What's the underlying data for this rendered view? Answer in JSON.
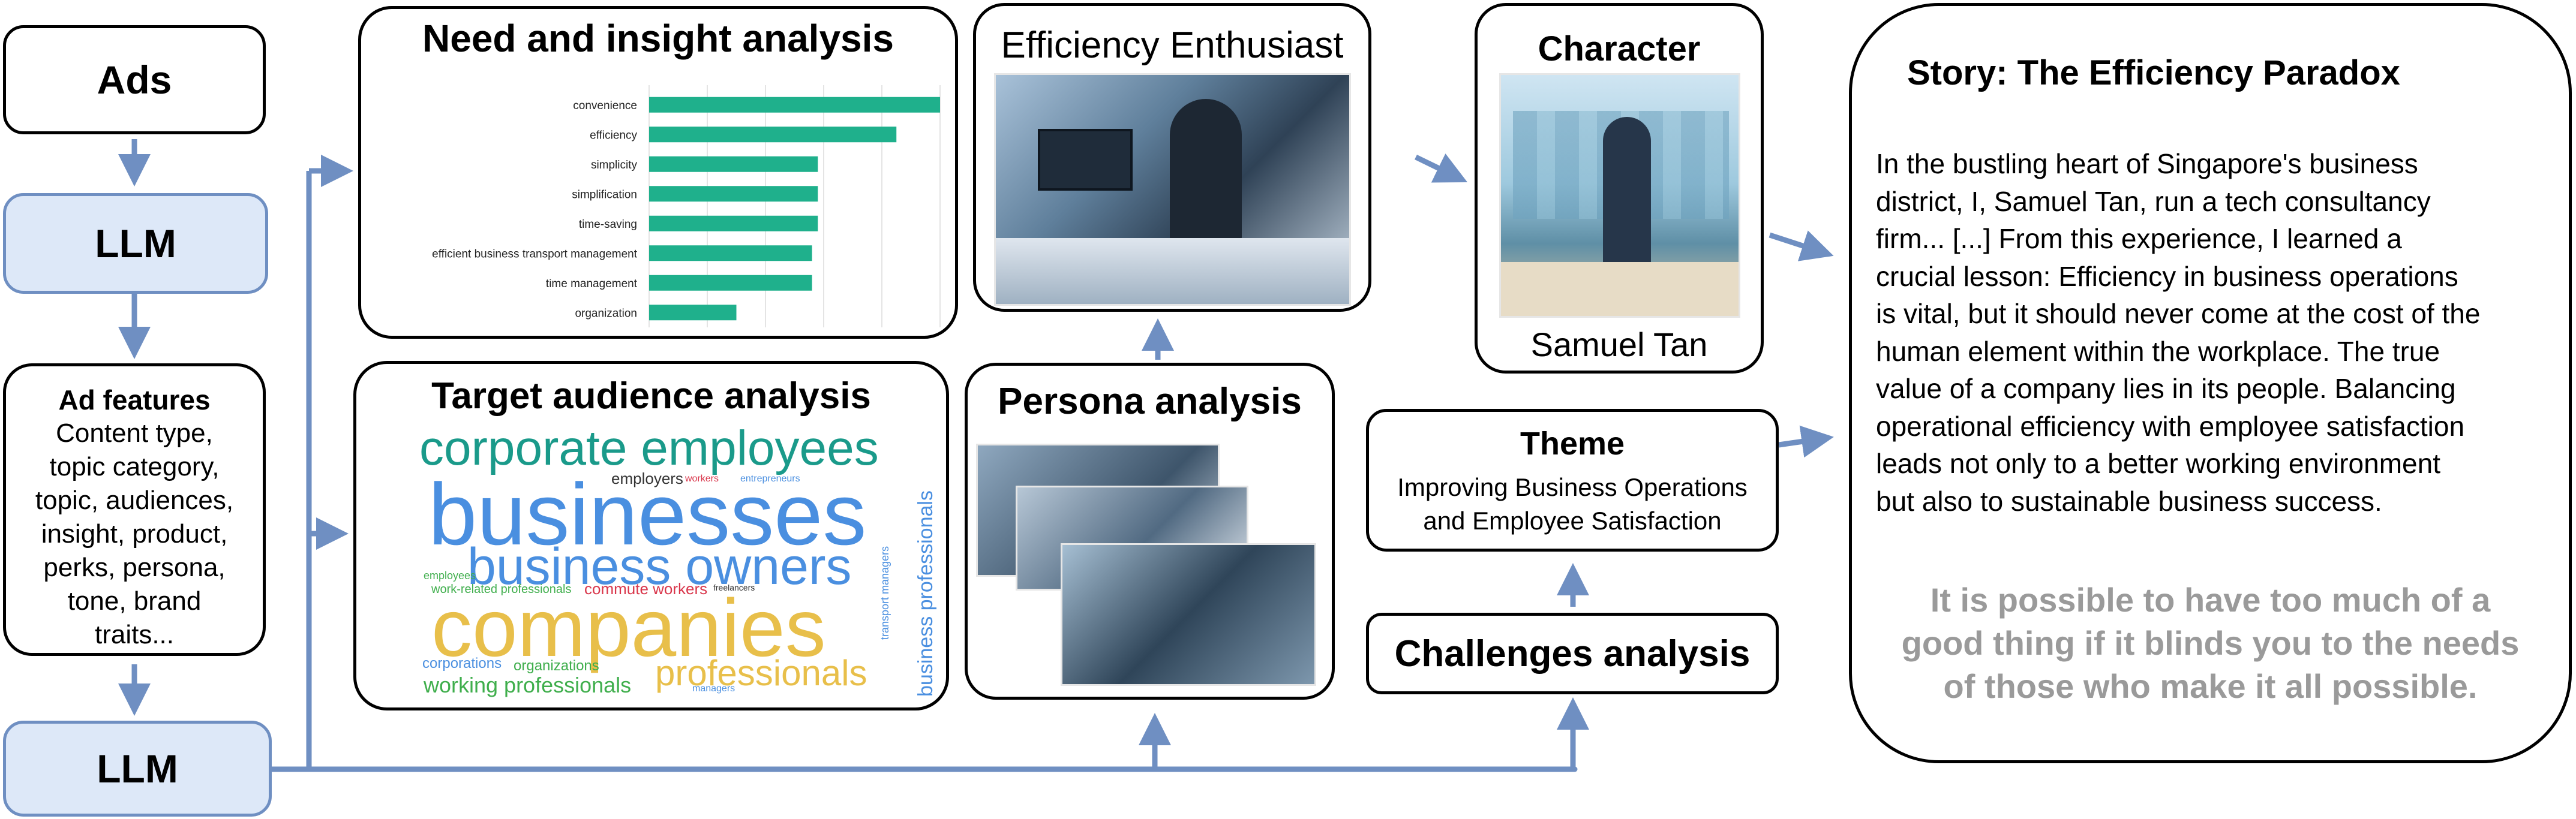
{
  "ads_label": "Ads",
  "llm_top_label": "LLM",
  "llm_bottom_label": "LLM",
  "ad_features": {
    "title": "Ad features",
    "lines": [
      "Content type,",
      "topic category,",
      "topic, audiences,",
      "insight, product,",
      "perks, persona,",
      "tone, brand",
      "traits..."
    ]
  },
  "need_insight": {
    "title": "Need and insight analysis",
    "chart_data": {
      "type": "bar",
      "orientation": "horizontal",
      "categories": [
        "convenience",
        "efficiency",
        "simplicity",
        "simplification",
        "time-saving",
        "efficient business transport management",
        "time management",
        "organization"
      ],
      "values": [
        10,
        8.5,
        5.8,
        5.8,
        5.8,
        5.6,
        5.6,
        3.0
      ],
      "xlim": [
        0,
        10
      ],
      "grid": true,
      "bar_color": "#1fb08c"
    }
  },
  "target_audience": {
    "title": "Target audience analysis",
    "words": [
      {
        "text": "corporate employees",
        "color": "#1a9a8a"
      },
      {
        "text": "businesses",
        "color": "#4a8fe0"
      },
      {
        "text": "business owners",
        "color": "#4a8fe0"
      },
      {
        "text": "companies",
        "color": "#e8bf4a"
      },
      {
        "text": "professionals",
        "color": "#e8bf4a"
      },
      {
        "text": "working professionals",
        "color": "#3fae4c"
      },
      {
        "text": "business professionals",
        "color": "#4a8fe0"
      },
      {
        "text": "employers",
        "color": "#333333"
      },
      {
        "text": "commute workers",
        "color": "#d9364b"
      },
      {
        "text": "work-related professionals",
        "color": "#3fae4c"
      },
      {
        "text": "corporations",
        "color": "#4a8fe0"
      },
      {
        "text": "organizations",
        "color": "#3fae4c"
      },
      {
        "text": "employees",
        "color": "#3fae4c"
      },
      {
        "text": "transport managers",
        "color": "#4a8fe0"
      },
      {
        "text": "managers",
        "color": "#4a8fe0"
      },
      {
        "text": "freelancers",
        "color": "#333333"
      },
      {
        "text": "entrepreneurs",
        "color": "#4a8fe0"
      },
      {
        "text": "workers",
        "color": "#d9364b"
      }
    ]
  },
  "efficiency_enthusiast": {
    "title": "Efficiency Enthusiast"
  },
  "persona_analysis": {
    "title": "Persona analysis"
  },
  "character": {
    "title": "Character",
    "name": "Samuel Tan"
  },
  "theme": {
    "title": "Theme",
    "lines": [
      "Improving Business Operations",
      "and Employee Satisfaction"
    ]
  },
  "challenges": {
    "title": "Challenges analysis"
  },
  "story": {
    "title": "Story: The Efficiency Paradox",
    "lines": [
      "In the bustling heart of Singapore's business",
      "district, I, Samuel Tan, run a tech consultancy",
      "firm... [...] From this experience, I learned a",
      "crucial lesson: Efficiency in business operations",
      "is vital, but it should never come at the cost of the",
      "human element within the workplace. The true",
      "value of a company lies in its people. Balancing",
      "operational efficiency with employee satisfaction",
      "leads not only to a better working environment",
      "but also to sustainable business success."
    ],
    "moral_lines": [
      "It is possible to have too much of a",
      "good thing if it blinds you to the needs",
      "of those who make it all possible."
    ]
  },
  "colors": {
    "arrow": "#6f8fc2",
    "llm_fill": "#dde8f8",
    "moral_text": "#9a9a9a"
  }
}
